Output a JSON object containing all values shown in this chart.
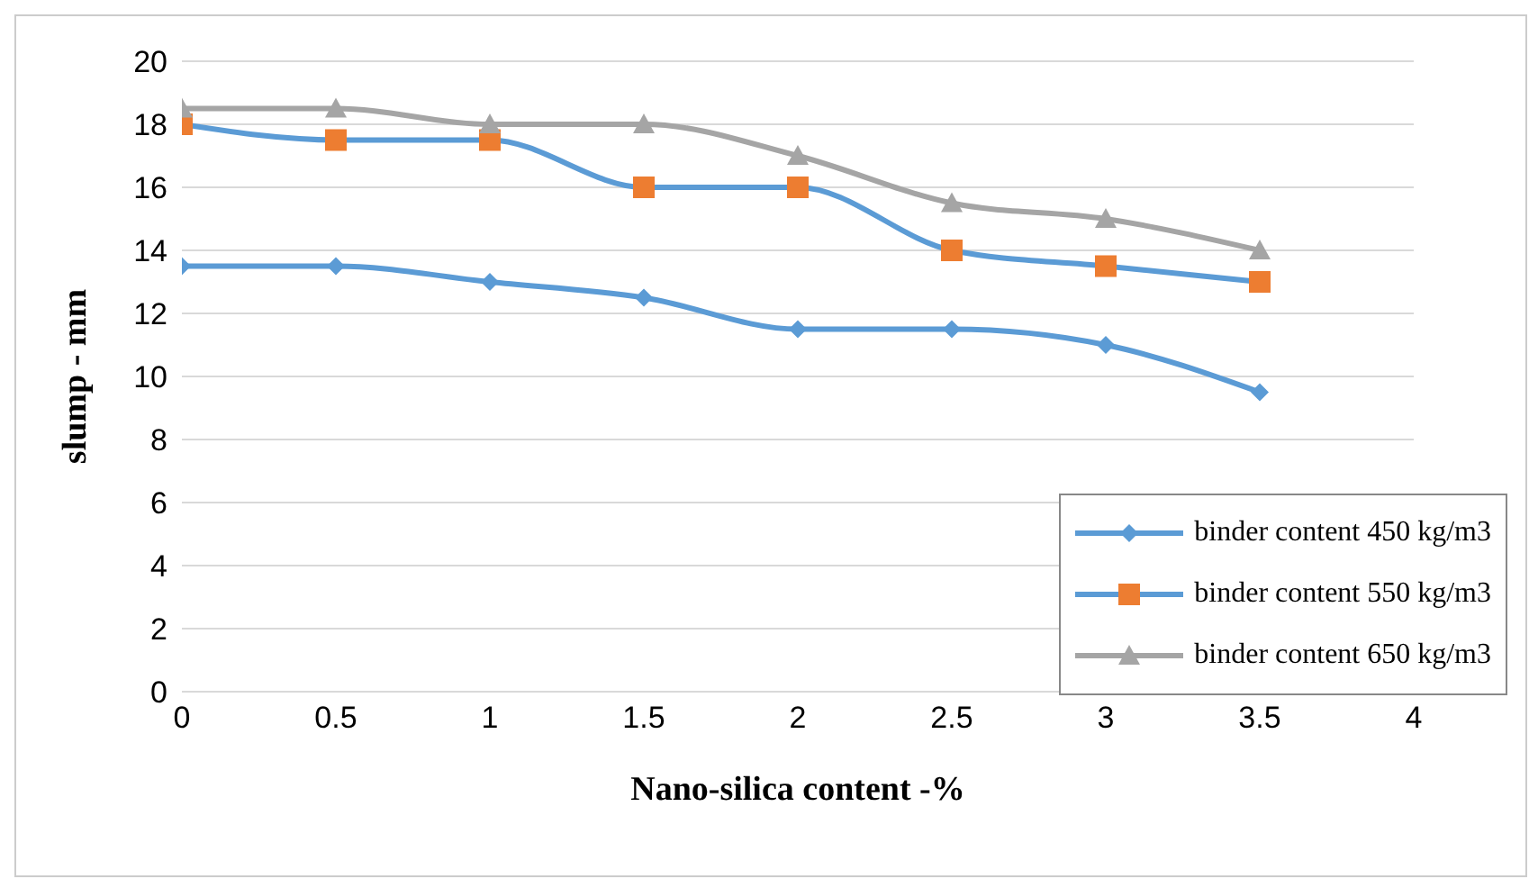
{
  "chart_data": {
    "type": "line",
    "xlabel": "Nano-silica content -%",
    "ylabel": "slump - mm",
    "x": [
      0,
      0.5,
      1,
      1.5,
      2,
      2.5,
      3,
      3.5
    ],
    "series": [
      {
        "name": "binder content 450 kg/m3",
        "color": "#5b9bd5",
        "marker": "diamond",
        "values": [
          13.5,
          13.5,
          13,
          12.5,
          11.5,
          11.5,
          11,
          9.5
        ]
      },
      {
        "name": "binder content 550 kg/m3",
        "color": "#5b9bd5",
        "colors": [
          "#ed7d31",
          "#ed7d31",
          "#ed7d31",
          "#ed7d31",
          "#ed7d31",
          "#ed7d31",
          "#ed7d31",
          "#ed7d31"
        ],
        "marker": "square",
        "values": [
          18,
          17.5,
          17.5,
          16,
          16,
          14,
          13.5,
          13
        ]
      },
      {
        "name": "binder content 650 kg/m3",
        "color": "#a5a5a5",
        "marker": "triangle",
        "values": [
          18.5,
          18.5,
          18,
          18,
          17,
          15.5,
          15,
          14
        ]
      }
    ],
    "xlim": [
      0,
      4
    ],
    "xticks": [
      0,
      0.5,
      1,
      1.5,
      2,
      2.5,
      3,
      3.5,
      4
    ],
    "ylim": [
      0,
      20
    ],
    "yticks": [
      0,
      2,
      4,
      6,
      8,
      10,
      12,
      14,
      16,
      18,
      20
    ],
    "grid": "y",
    "legend": "bottom right"
  }
}
